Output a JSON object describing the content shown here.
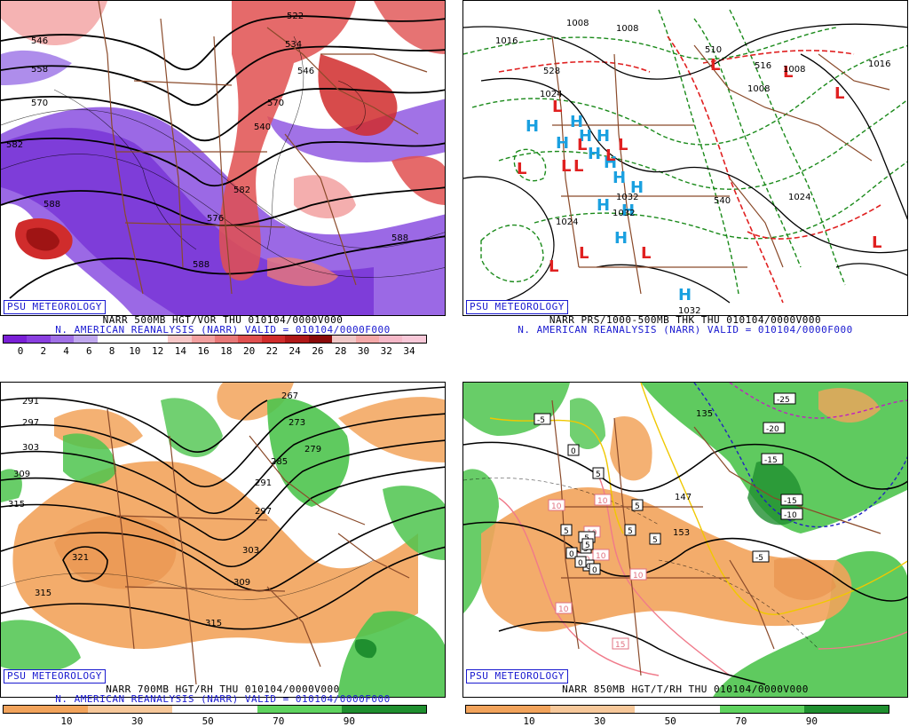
{
  "panels": [
    {
      "credit": "PSU METEOROLOGY",
      "line1": "NARR 500MB HGT/VOR THU 010104/0000V000",
      "line2": "N. AMERICAN REANALYSIS (NARR) VALID = 010104/0000F000",
      "scale_labels": [
        "0",
        "2",
        "4",
        "6",
        "8",
        "10",
        "12",
        "14",
        "16",
        "18",
        "20",
        "22",
        "24",
        "26",
        "28",
        "30",
        "32",
        "34"
      ],
      "scale_colors": [
        "#7a1fd6",
        "#8a3fe0",
        "#a070e6",
        "#c0a8ee",
        "#ffffff",
        "#ffffff",
        "#ffffff",
        "#f7c8c8",
        "#f2a0a0",
        "#e87878",
        "#e05050",
        "#d02c2c",
        "#b01818",
        "#8a0a0a",
        "#f0c8c8",
        "#f4a8a8",
        "#f5b8c8",
        "#f8c8d8"
      ],
      "contour_labels": [
        "546",
        "558",
        "570",
        "582",
        "588",
        "588",
        "522",
        "534",
        "546",
        "570",
        "576",
        "540",
        "582",
        "588"
      ]
    },
    {
      "credit": "PSU METEOROLOGY",
      "line1": "NARR PRS/1000-500MB THK THU 010104/0000V000",
      "line2": "N. AMERICAN REANALYSIS (NARR) VALID = 010104/0000F000",
      "contour_labels": [
        "1016",
        "1024",
        "1008",
        "1008",
        "1016",
        "1008",
        "1016",
        "1008",
        "1032",
        "1032",
        "1024",
        "1032",
        "540",
        "510",
        "516",
        "528",
        "1024"
      ],
      "high_symbol": "H",
      "low_symbol": "L"
    },
    {
      "credit": "PSU METEOROLOGY",
      "line1": "NARR 700MB HGT/RH THU 010104/0000V000",
      "line2": "N. AMERICAN REANALYSIS (NARR) VALID = 010104/0000F000",
      "scale_labels": [
        "10",
        "30",
        "50",
        "70",
        "90"
      ],
      "scale_colors": [
        "#f2a35b",
        "#f7c89a",
        "#ffffff",
        "#5fd35f",
        "#1f8f2f"
      ],
      "contour_labels": [
        "291",
        "297",
        "303",
        "309",
        "315",
        "321",
        "267",
        "273",
        "279",
        "285",
        "291",
        "297",
        "303",
        "309",
        "315"
      ]
    },
    {
      "credit": "PSU METEOROLOGY",
      "line1": "NARR 850MB HGT/T/RH THU 010104/0000V000",
      "line2": "",
      "scale_labels": [
        "10",
        "30",
        "50",
        "70",
        "90"
      ],
      "scale_colors": [
        "#f2a35b",
        "#f7c89a",
        "#ffffff",
        "#5fd35f",
        "#1f8f2f"
      ],
      "boxed_labels": [
        "-5",
        "-25",
        "-20",
        "-15",
        "-15",
        "-10",
        "-5",
        "10",
        "10",
        "10",
        "0",
        "5",
        "5",
        "5",
        "5",
        "10",
        "5",
        "10",
        "15",
        "10",
        "-5",
        "5",
        "0",
        "10",
        "0",
        "0",
        "0",
        "5"
      ],
      "contour_labels": [
        "135",
        "147",
        "153"
      ]
    }
  ]
}
